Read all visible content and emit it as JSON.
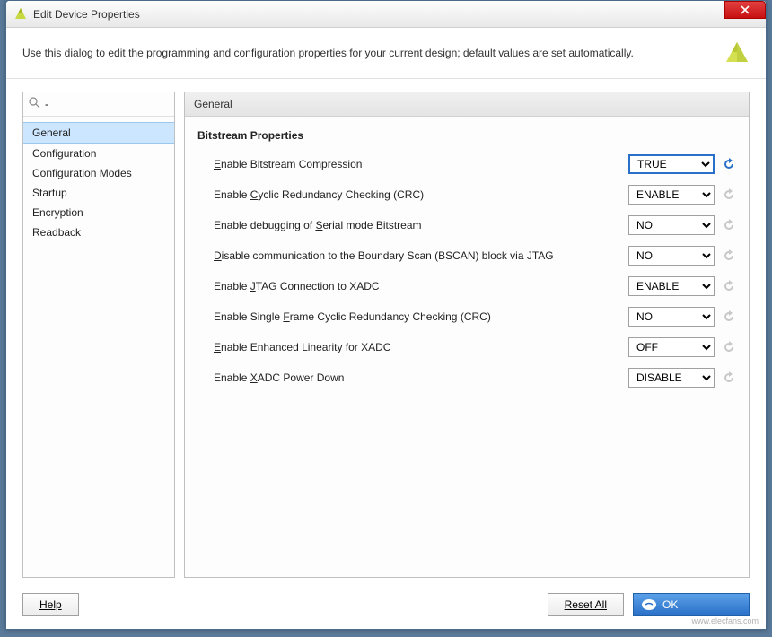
{
  "window": {
    "title": "Edit Device Properties",
    "description": "Use this dialog to edit the programming and configuration properties for your current design; default values are set automatically."
  },
  "sidebar": {
    "search_placeholder": "",
    "items": [
      {
        "label": "General",
        "selected": true
      },
      {
        "label": "Configuration",
        "selected": false
      },
      {
        "label": "Configuration Modes",
        "selected": false
      },
      {
        "label": "Startup",
        "selected": false
      },
      {
        "label": "Encryption",
        "selected": false
      },
      {
        "label": "Readback",
        "selected": false
      }
    ]
  },
  "panel": {
    "header": "General",
    "section_title": "Bitstream Properties",
    "properties": [
      {
        "label_pre": "",
        "mn": "E",
        "label_post": "nable Bitstream Compression",
        "value": "TRUE",
        "highlighted": true,
        "reset_active": true
      },
      {
        "label_pre": "Enable ",
        "mn": "C",
        "label_post": "yclic Redundancy Checking (CRC)",
        "value": "ENABLE",
        "highlighted": false,
        "reset_active": false
      },
      {
        "label_pre": "Enable debugging of ",
        "mn": "S",
        "label_post": "erial mode Bitstream",
        "value": "NO",
        "highlighted": false,
        "reset_active": false
      },
      {
        "label_pre": "",
        "mn": "D",
        "label_post": "isable communication to the Boundary Scan (BSCAN) block via JTAG",
        "value": "NO",
        "highlighted": false,
        "reset_active": false
      },
      {
        "label_pre": "Enable ",
        "mn": "J",
        "label_post": "TAG Connection to XADC",
        "value": "ENABLE",
        "highlighted": false,
        "reset_active": false
      },
      {
        "label_pre": "Enable Single ",
        "mn": "F",
        "label_post": "rame Cyclic Redundancy Checking (CRC)",
        "value": "NO",
        "highlighted": false,
        "reset_active": false
      },
      {
        "label_pre": "",
        "mn": "E",
        "label_post": "nable Enhanced Linearity for XADC",
        "value": "OFF",
        "highlighted": false,
        "reset_active": false
      },
      {
        "label_pre": "Enable ",
        "mn": "X",
        "label_post": "ADC Power Down",
        "value": "DISABLE",
        "highlighted": false,
        "reset_active": false
      }
    ]
  },
  "footer": {
    "help": "Help",
    "reset_all": "Reset All",
    "ok": "OK"
  },
  "watermark": "www.elecfans.com",
  "colors": {
    "accent": "#2a70c8",
    "selection": "#cde6ff",
    "border": "#c0c0c0"
  }
}
